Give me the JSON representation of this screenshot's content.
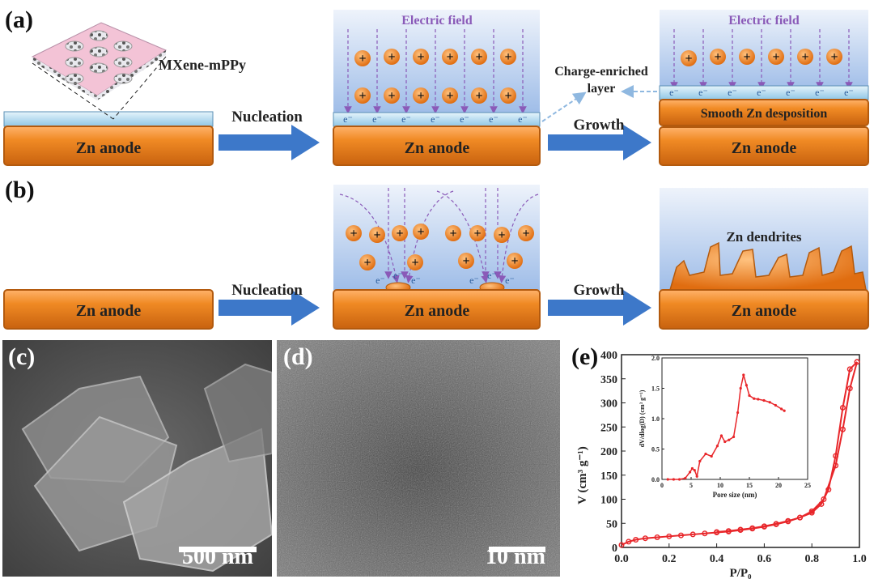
{
  "panels": {
    "a": "(a)",
    "b": "(b)",
    "c": "(c)",
    "d": "(d)",
    "e": "(e)"
  },
  "labels": {
    "zn_anode": "Zn anode",
    "nucleation": "Nucleation",
    "growth": "Growth",
    "electric_field": "Electric field",
    "mxene": "MXene-mPPy",
    "charge_layer_line1": "Charge-enriched",
    "charge_layer_line2": "layer",
    "smooth_zn": "Smooth Zn desposition",
    "zn_dendrites": "Zn dendrites",
    "electron": "e⁻",
    "cation": "+"
  },
  "micrographs": {
    "c_scale": "500 nm",
    "d_scale": "10 nm"
  },
  "colors": {
    "anode": "#f08a24",
    "anode_edge": "#b35a0e",
    "arrow": "#3d78c9",
    "field": "#8a5ab8",
    "layer": "#bfe0f3",
    "series": "#e8262a"
  },
  "chart_data": {
    "type": "line",
    "xlabel": "P/P₀",
    "ylabel": "V (cm³ g⁻¹)",
    "xlim": [
      0,
      1.0
    ],
    "ylim": [
      0,
      400
    ],
    "xticks": [
      "0.0",
      "0.2",
      "0.4",
      "0.6",
      "0.8",
      "1.0"
    ],
    "yticks": [
      "0",
      "50",
      "100",
      "150",
      "200",
      "250",
      "300",
      "350",
      "400"
    ],
    "series": [
      {
        "values_x": [
          0.0,
          0.03,
          0.06,
          0.1,
          0.15,
          0.2,
          0.25,
          0.3,
          0.35,
          0.4,
          0.45,
          0.5,
          0.55,
          0.6,
          0.65,
          0.7,
          0.75,
          0.8,
          0.85,
          0.9,
          0.93,
          0.96,
          0.99
        ],
        "values_y": [
          5,
          12,
          16,
          19,
          21,
          23,
          25,
          27,
          29,
          31,
          33,
          36,
          39,
          43,
          48,
          54,
          62,
          75,
          100,
          170,
          245,
          330,
          385
        ]
      },
      {
        "values_x": [
          0.99,
          0.96,
          0.93,
          0.9,
          0.87,
          0.84,
          0.8,
          0.75,
          0.7,
          0.65,
          0.6,
          0.55,
          0.5,
          0.45,
          0.4
        ],
        "values_y": [
          385,
          370,
          290,
          190,
          120,
          90,
          72,
          62,
          55,
          49,
          44,
          40,
          37,
          34,
          32
        ]
      }
    ],
    "inset": {
      "type": "line",
      "xlabel": "Pore size (nm)",
      "ylabel": "dV/dlog(D) (cm³ g⁻¹)",
      "xlim": [
        0,
        25
      ],
      "ylim": [
        0,
        2.0
      ],
      "xticks": [
        "0",
        "5",
        "10",
        "15",
        "20",
        "25"
      ],
      "yticks": [
        "0.0",
        "0.5",
        "1.0",
        "1.5",
        "2.0"
      ],
      "x": [
        1,
        2,
        3,
        4,
        4.8,
        5.2,
        5.6,
        6.0,
        6.5,
        7.5,
        8.5,
        9.5,
        10.2,
        10.8,
        11.5,
        12.3,
        13.0,
        13.5,
        14.0,
        14.5,
        15.0,
        15.8,
        16.5,
        17.5,
        18.5,
        19.5,
        20.5,
        21.0
      ],
      "y": [
        0,
        0,
        0,
        0.02,
        0.12,
        0.18,
        0.15,
        0.05,
        0.3,
        0.42,
        0.38,
        0.55,
        0.72,
        0.62,
        0.65,
        0.7,
        1.1,
        1.5,
        1.72,
        1.55,
        1.38,
        1.33,
        1.32,
        1.3,
        1.27,
        1.22,
        1.16,
        1.13
      ]
    }
  }
}
